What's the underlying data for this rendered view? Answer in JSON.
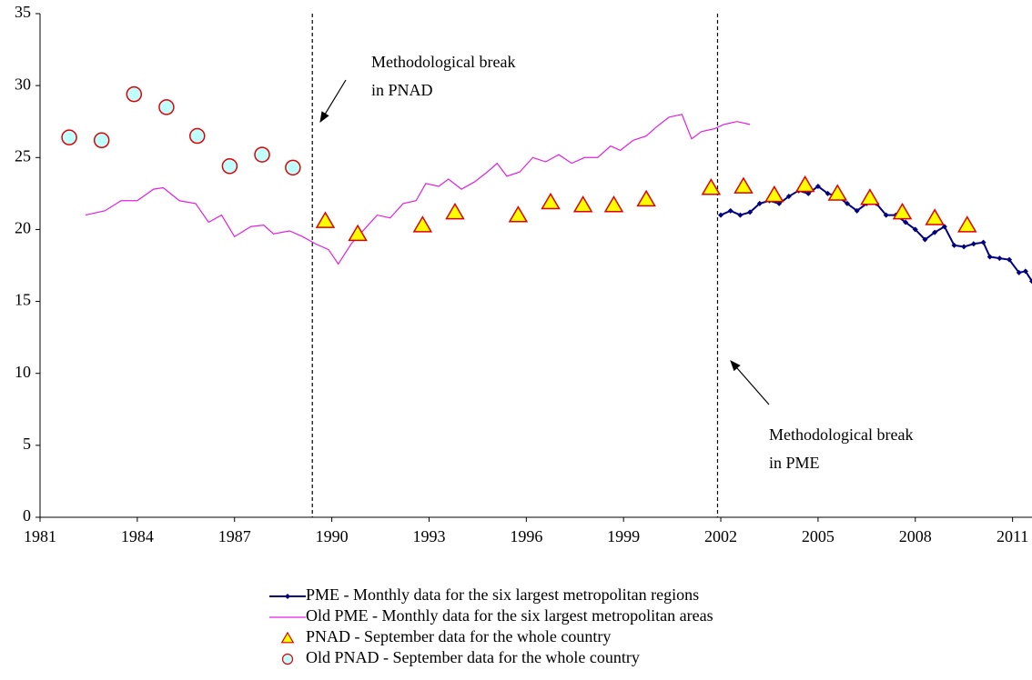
{
  "chart_data": {
    "type": "line",
    "xlim": [
      1981,
      2011.6
    ],
    "ylim": [
      0,
      35
    ],
    "xticks": [
      1981,
      1984,
      1987,
      1990,
      1993,
      1996,
      1999,
      2002,
      2005,
      2008,
      2011
    ],
    "yticks": [
      0,
      5,
      10,
      15,
      20,
      25,
      30,
      35
    ],
    "reference_lines": [
      {
        "x": 1989.4,
        "label": [
          "Methodological break",
          "in PNAD"
        ]
      },
      {
        "x": 2001.9,
        "label": [
          "Methodological break",
          "in PME"
        ]
      }
    ],
    "series": [
      {
        "name": "PME - Monthly data for the six largest metropolitan regions",
        "style": "line-marker",
        "color": "#000080",
        "x": [
          2002.0,
          2002.3,
          2002.6,
          2002.9,
          2003.2,
          2003.5,
          2003.8,
          2004.1,
          2004.4,
          2004.7,
          2005.0,
          2005.3,
          2005.6,
          2005.9,
          2006.2,
          2006.5,
          2006.8,
          2007.1,
          2007.4,
          2007.7,
          2008.0,
          2008.3,
          2008.6,
          2008.9,
          2009.2,
          2009.5,
          2009.8,
          2010.1,
          2010.3,
          2010.6,
          2010.9,
          2011.2,
          2011.4,
          2011.6
        ],
        "values": [
          21.0,
          21.3,
          21.0,
          21.2,
          21.8,
          22.0,
          21.8,
          22.3,
          22.7,
          22.5,
          23.0,
          22.5,
          22.3,
          21.8,
          21.3,
          21.8,
          21.8,
          21.0,
          21.0,
          20.5,
          20.0,
          19.3,
          19.8,
          20.2,
          18.9,
          18.8,
          19.0,
          19.1,
          18.1,
          18.0,
          17.9,
          17.0,
          17.1,
          16.4
        ]
      },
      {
        "name": "Old PME - Monthly data for the six largest metropolitan areas",
        "style": "line",
        "color": "#e020e0",
        "x": [
          1982.4,
          1983.0,
          1983.5,
          1984.0,
          1984.5,
          1984.8,
          1985.3,
          1985.8,
          1986.2,
          1986.6,
          1987.0,
          1987.5,
          1987.9,
          1988.2,
          1988.7,
          1989.1,
          1989.5,
          1989.9,
          1990.2,
          1990.6,
          1991.0,
          1991.4,
          1991.8,
          1992.2,
          1992.6,
          1992.9,
          1993.3,
          1993.6,
          1994.0,
          1994.4,
          1994.8,
          1995.1,
          1995.4,
          1995.8,
          1996.2,
          1996.6,
          1997.0,
          1997.4,
          1997.8,
          1998.2,
          1998.6,
          1998.9,
          1999.3,
          1999.7,
          2000.0,
          2000.4,
          2000.8,
          2001.1,
          2001.4,
          2001.8,
          2002.1,
          2002.5,
          2002.9
        ],
        "values": [
          21.0,
          21.3,
          22.0,
          22.0,
          22.8,
          22.9,
          22.0,
          21.8,
          20.5,
          21.0,
          19.5,
          20.2,
          20.3,
          19.7,
          19.9,
          19.5,
          19.0,
          18.6,
          17.6,
          19.0,
          20.0,
          21.0,
          20.8,
          21.8,
          22.0,
          23.2,
          23.0,
          23.5,
          22.8,
          23.3,
          24.0,
          24.6,
          23.7,
          24.0,
          25.0,
          24.7,
          25.2,
          24.6,
          25.0,
          25.0,
          25.8,
          25.5,
          26.2,
          26.5,
          27.1,
          27.8,
          28.0,
          26.3,
          26.8,
          27.0,
          27.3,
          27.5,
          27.3
        ]
      },
      {
        "name": "PNAD - September data for the whole country",
        "style": "triangle",
        "color": "#ffff00",
        "edge_color": "#e00000",
        "x": [
          1989.8,
          1990.8,
          1992.8,
          1993.8,
          1995.75,
          1996.75,
          1997.75,
          1998.7,
          1999.7,
          2001.7,
          2002.7,
          2003.65,
          2004.6,
          2005.6,
          2006.6,
          2007.6,
          2008.6,
          2009.6
        ],
        "values": [
          20.6,
          19.7,
          20.3,
          21.2,
          21.0,
          21.9,
          21.7,
          21.7,
          22.1,
          22.9,
          23.0,
          22.4,
          23.1,
          22.5,
          22.2,
          21.2,
          20.8,
          20.3
        ]
      },
      {
        "name": "Old PNAD - September data for the whole country",
        "style": "circle",
        "color": "#c0ffff",
        "edge_color": "#e00000",
        "x": [
          1981.9,
          1982.9,
          1983.9,
          1984.9,
          1985.85,
          1986.85,
          1987.85,
          1988.8
        ],
        "values": [
          26.4,
          26.2,
          29.4,
          28.5,
          26.5,
          24.4,
          25.2,
          24.3
        ]
      }
    ]
  }
}
